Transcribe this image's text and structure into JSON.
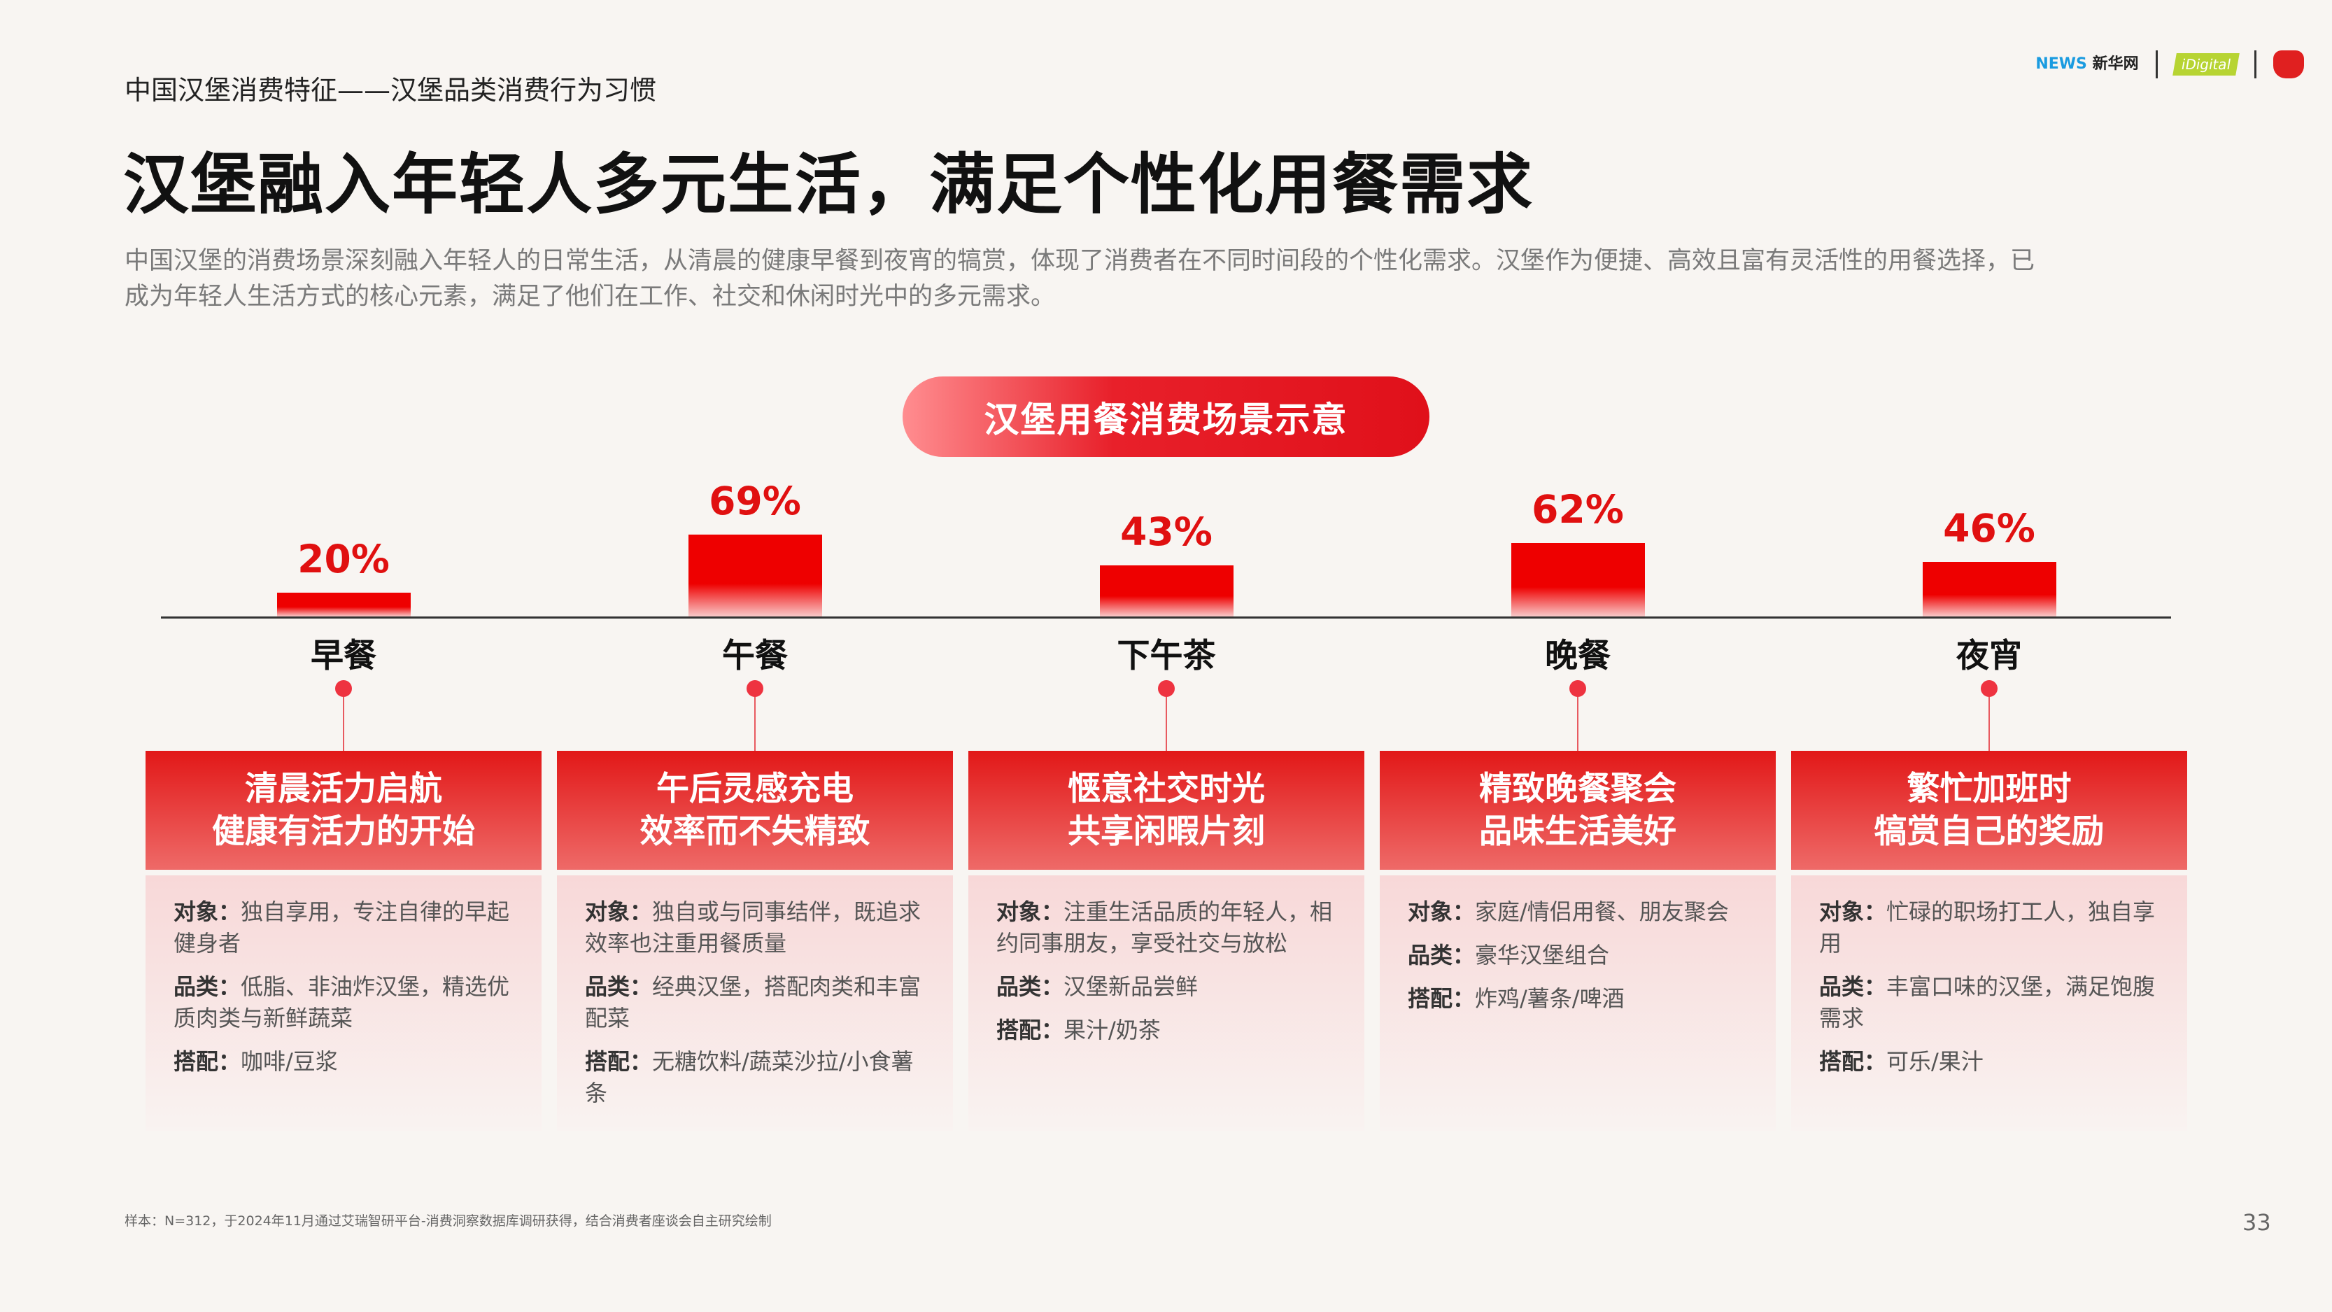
{
  "header": {
    "subtitle": "中国汉堡消费特征——汉堡品类消费行为习惯",
    "title": "汉堡融入年轻人多元生活，满足个性化用餐需求",
    "desc": [
      "中国汉堡的消费场景深刻融入年轻人的日常生活，从清晨的健康早餐到夜宵的犒赏，体现了消费者在不同时间段的个性化需求。汉堡作为便捷、高效且富有灵活性的用餐选择，已",
      "成为年轻人生活方式的核心元素，满足了他们在工作、社交和休闲时光中的多元需求。"
    ]
  },
  "logos": {
    "xinhua": "新华网",
    "idigital": "iDigital"
  },
  "pill": "汉堡用餐消费场景示意",
  "colors": {
    "accent": "#e01010"
  },
  "scenes": [
    {
      "label": "早餐",
      "pct": "20%",
      "value": 20,
      "title1": "清晨活力启航",
      "title2": "健康有活力的开始",
      "items": [
        {
          "k": "对象：",
          "v": "独自享用，专注自律的早起健身者"
        },
        {
          "k": "品类：",
          "v": "低脂、非油炸汉堡，精选优质肉类与新鲜蔬菜"
        },
        {
          "k": "搭配：",
          "v": "咖啡/豆浆"
        }
      ]
    },
    {
      "label": "午餐",
      "pct": "69%",
      "value": 69,
      "title1": "午后灵感充电",
      "title2": "效率而不失精致",
      "items": [
        {
          "k": "对象：",
          "v": "独自或与同事结伴，既追求效率也注重用餐质量"
        },
        {
          "k": "品类：",
          "v": "经典汉堡，搭配肉类和丰富配菜"
        },
        {
          "k": "搭配：",
          "v": "无糖饮料/蔬菜沙拉/小食薯条"
        }
      ]
    },
    {
      "label": "下午茶",
      "pct": "43%",
      "value": 43,
      "title1": "惬意社交时光",
      "title2": "共享闲暇片刻",
      "items": [
        {
          "k": "对象：",
          "v": "注重生活品质的年轻人，相约同事朋友，享受社交与放松"
        },
        {
          "k": "品类：",
          "v": "汉堡新品尝鲜"
        },
        {
          "k": "搭配：",
          "v": "果汁/奶茶"
        }
      ]
    },
    {
      "label": "晚餐",
      "pct": "62%",
      "value": 62,
      "title1": "精致晚餐聚会",
      "title2": "品味生活美好",
      "items": [
        {
          "k": "对象：",
          "v": "家庭/情侣用餐、朋友聚会"
        },
        {
          "k": "品类：",
          "v": "豪华汉堡组合"
        },
        {
          "k": "搭配：",
          "v": "炸鸡/薯条/啤酒"
        }
      ]
    },
    {
      "label": "夜宵",
      "pct": "46%",
      "value": 46,
      "title1": "繁忙加班时",
      "title2": "犒赏自己的奖励",
      "items": [
        {
          "k": "对象：",
          "v": "忙碌的职场打工人，独自享用"
        },
        {
          "k": "品类：",
          "v": "丰富口味的汉堡，满足饱腹需求"
        },
        {
          "k": "搭配：",
          "v": "可乐/果汁"
        }
      ]
    }
  ],
  "footer": "样本：N=312，于2024年11月通过艾瑞智研平台-消费洞察数据库调研获得，结合消费者座谈会自主研究绘制",
  "page": "33"
}
